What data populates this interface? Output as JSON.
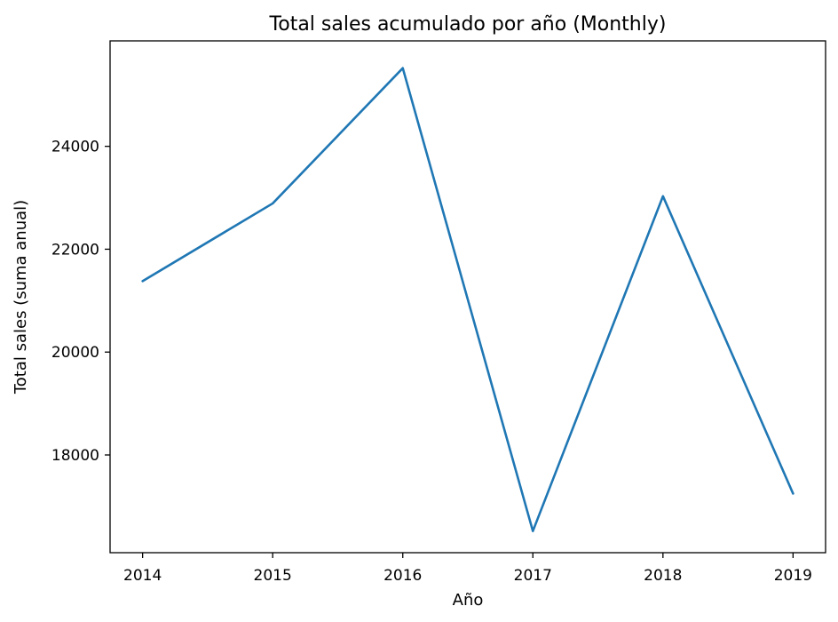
{
  "chart_data": {
    "type": "line",
    "title": "Total sales acumulado por año (Monthly)",
    "xlabel": "Año",
    "ylabel": "Total sales (suma anual)",
    "x": [
      2014,
      2015,
      2016,
      2017,
      2018,
      2019
    ],
    "xticks": [
      "2014",
      "2015",
      "2016",
      "2017",
      "2018",
      "2019"
    ],
    "xlim": [
      2013.75,
      2019.25
    ],
    "yticks": [
      18000,
      20000,
      22000,
      24000
    ],
    "ytick_labels": [
      "18000",
      "20000",
      "22000",
      "24000"
    ],
    "ylim": [
      16100,
      26050
    ],
    "grid": false,
    "series": [
      {
        "values": [
          21380,
          22890,
          25520,
          16520,
          23030,
          17250
        ],
        "color": "#1f77b4"
      }
    ]
  }
}
